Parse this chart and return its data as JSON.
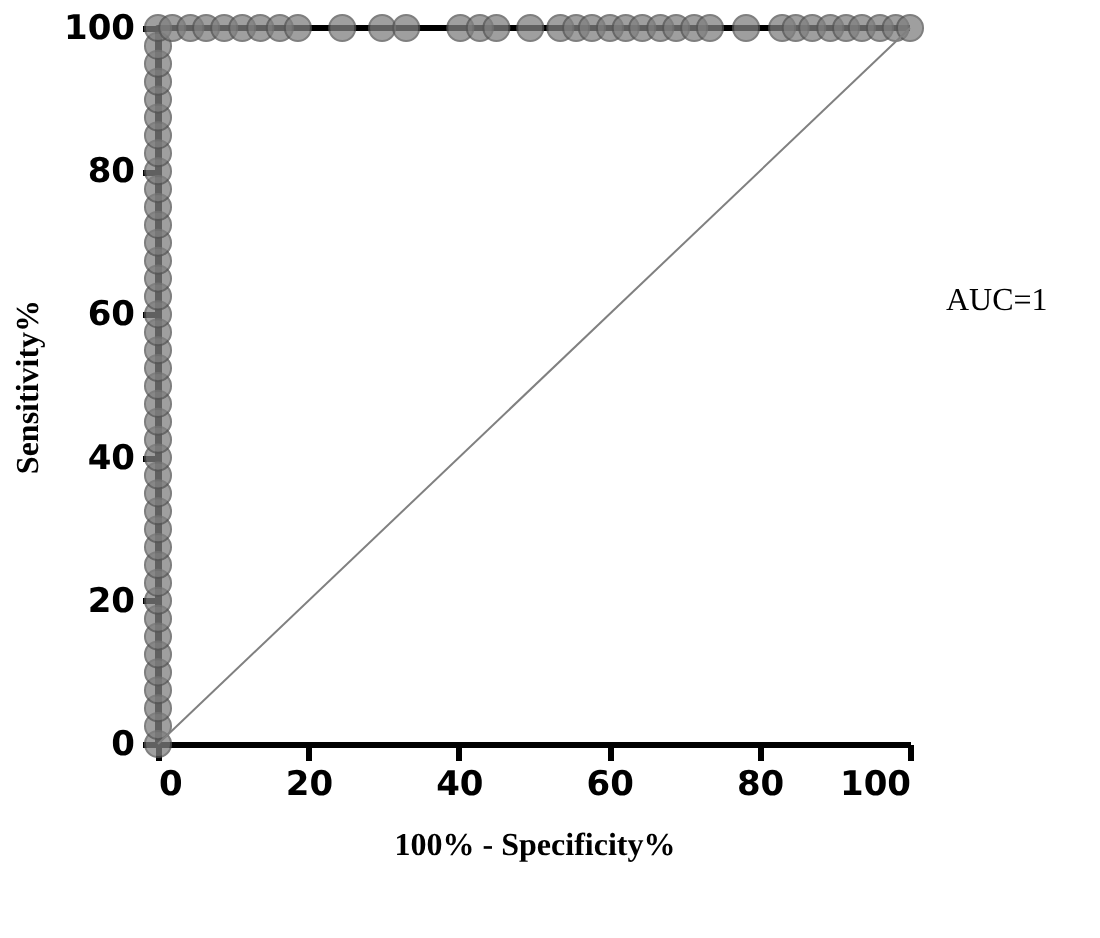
{
  "chart_data": {
    "type": "line",
    "xlabel": "100% - Specificity%",
    "ylabel": "Sensitivity%",
    "annotations": [
      "AUC=1"
    ],
    "xlim": [
      0,
      100
    ],
    "ylim": [
      0,
      100
    ],
    "xticks": [
      0,
      20,
      40,
      60,
      80,
      100
    ],
    "yticks": [
      0,
      20,
      40,
      60,
      80,
      100
    ],
    "grid": false,
    "series": [
      {
        "marker": "circle",
        "color": "#808080",
        "x": [
          0,
          0,
          0,
          0,
          0,
          0,
          0,
          0,
          0,
          0,
          0,
          0,
          0,
          0,
          0,
          0,
          0,
          0,
          0,
          0,
          0,
          0,
          0,
          0,
          0,
          0,
          0,
          0,
          0,
          0,
          0,
          0,
          0,
          0,
          0,
          0,
          0,
          0,
          0,
          0,
          0,
          1.9,
          4.3,
          6.4,
          8.8,
          11.2,
          13.6,
          16.2,
          18.6,
          24.5,
          29.8,
          33,
          40.2,
          42.8,
          45,
          49.5,
          53.5,
          55.6,
          57.7,
          60.1,
          62.2,
          64.4,
          66.8,
          68.9,
          71.3,
          73.4,
          78.2,
          83,
          84.8,
          87,
          89.4,
          91.5,
          93.6,
          96,
          98.1,
          100
        ],
        "values": [
          0,
          2.5,
          5,
          7.5,
          10,
          12.5,
          15,
          17.5,
          20,
          22.5,
          25,
          27.5,
          30,
          32.5,
          35,
          37.5,
          40,
          42.5,
          45,
          47.5,
          50,
          52.5,
          55,
          57.5,
          60,
          62.5,
          65,
          67.5,
          70,
          72.5,
          75,
          77.5,
          80,
          82.5,
          85,
          87.5,
          90,
          92.5,
          95,
          97.5,
          100,
          100,
          100,
          100,
          100,
          100,
          100,
          100,
          100,
          100,
          100,
          100,
          100,
          100,
          100,
          100,
          100,
          100,
          100,
          100,
          100,
          100,
          100,
          100,
          100,
          100,
          100,
          100,
          100,
          100,
          100,
          100,
          100,
          100,
          100,
          100
        ]
      },
      {
        "marker": "none",
        "color": "#808080",
        "x": [
          0,
          100
        ],
        "values": [
          0,
          100
        ]
      }
    ]
  }
}
